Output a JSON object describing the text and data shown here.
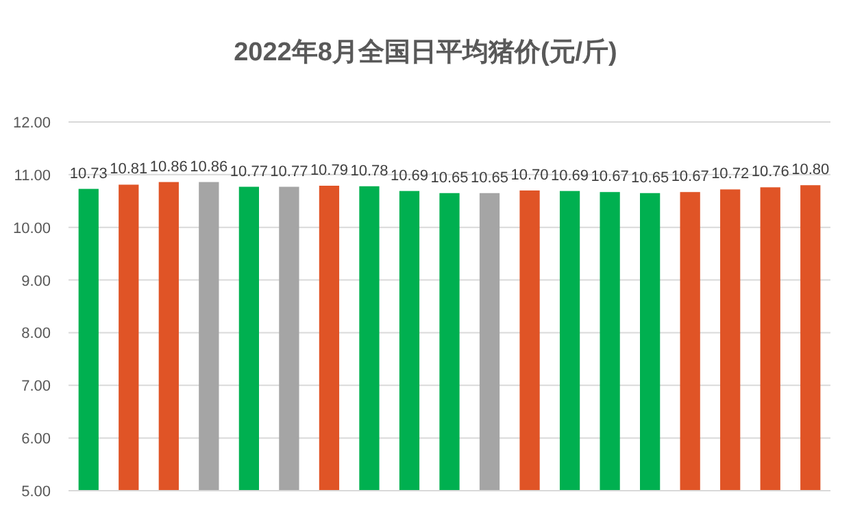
{
  "chart_data": {
    "type": "bar",
    "title": "2022年8月全国日平均猪价(元/斤)",
    "categories": [
      null,
      null,
      null,
      null,
      null,
      null,
      null,
      null,
      null,
      null,
      null,
      null,
      null,
      null,
      null,
      null,
      null,
      null,
      null
    ],
    "values": [
      10.73,
      10.81,
      10.86,
      10.86,
      10.77,
      10.77,
      10.79,
      10.78,
      10.69,
      10.65,
      10.65,
      10.7,
      10.69,
      10.67,
      10.65,
      10.67,
      10.72,
      10.76,
      10.8
    ],
    "value_labels": [
      "10.73",
      "10.81",
      "10.86",
      "10.86",
      "10.77",
      "10.77",
      "10.79",
      "10.78",
      "10.69",
      "10.65",
      "10.65",
      "10.70",
      "10.69",
      "10.67",
      "10.65",
      "10.67",
      "10.72",
      "10.76",
      "10.80"
    ],
    "colors": [
      "#00b050",
      "#e05426",
      "#e05426",
      "#a5a5a5",
      "#00b050",
      "#a5a5a5",
      "#e05426",
      "#00b050",
      "#00b050",
      "#00b050",
      "#a5a5a5",
      "#e05426",
      "#00b050",
      "#00b050",
      "#00b050",
      "#e05426",
      "#e05426",
      "#e05426",
      "#e05426"
    ],
    "ylim": [
      5,
      12
    ],
    "yticks": [
      {
        "value": 5,
        "label": "5.00"
      },
      {
        "value": 6,
        "label": "6.00"
      },
      {
        "value": 7,
        "label": "7.00"
      },
      {
        "value": 8,
        "label": "8.00"
      },
      {
        "value": 9,
        "label": "9.00"
      },
      {
        "value": 10,
        "label": "10.00"
      },
      {
        "value": 11,
        "label": "11.00"
      },
      {
        "value": 12,
        "label": "12.00"
      }
    ],
    "grid": "y"
  }
}
